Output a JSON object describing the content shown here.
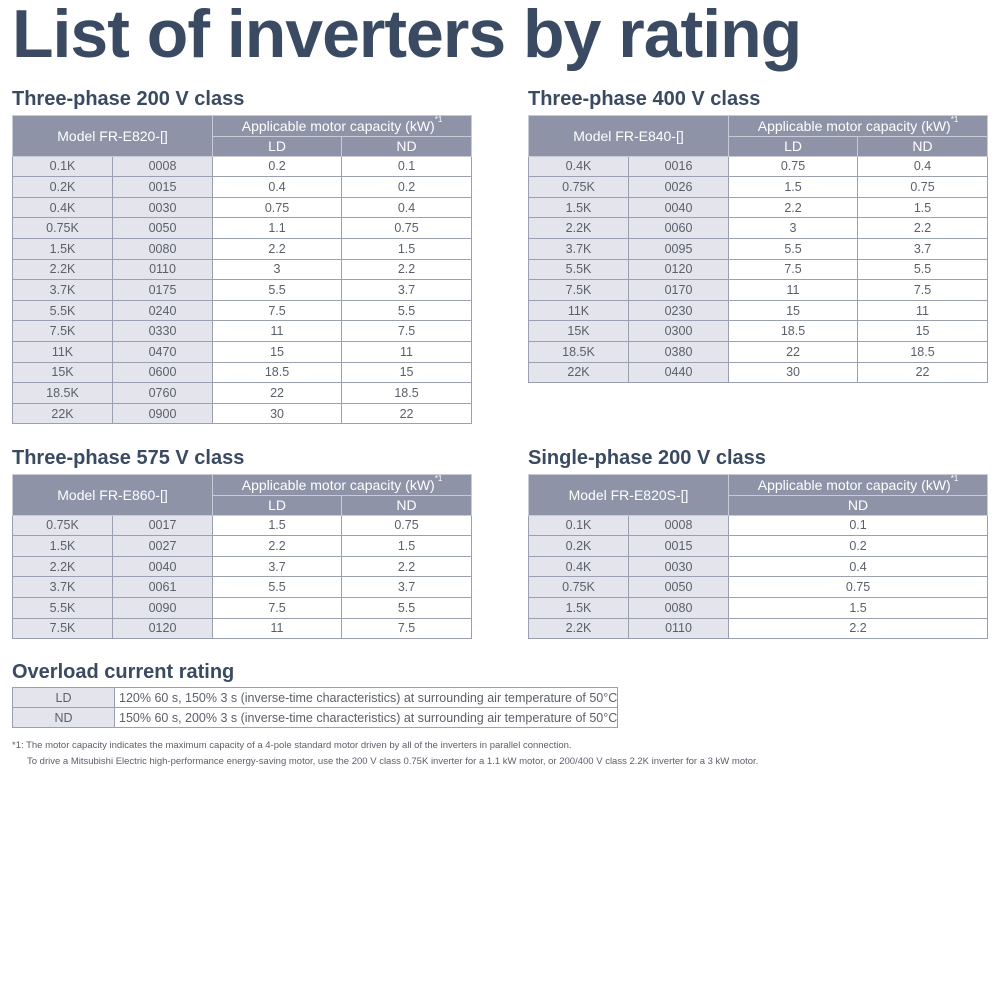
{
  "page_title": "List of inverters by rating",
  "capacity_header": "Applicable motor capacity (kW)",
  "footnote_mark": "*1",
  "tables": {
    "t200": {
      "title": "Three-phase 200 V class",
      "model_label": "Model FR-E820-[]",
      "cols": [
        "LD",
        "ND"
      ],
      "rows": [
        [
          "0.1K",
          "0008",
          "0.2",
          "0.1"
        ],
        [
          "0.2K",
          "0015",
          "0.4",
          "0.2"
        ],
        [
          "0.4K",
          "0030",
          "0.75",
          "0.4"
        ],
        [
          "0.75K",
          "0050",
          "1.1",
          "0.75"
        ],
        [
          "1.5K",
          "0080",
          "2.2",
          "1.5"
        ],
        [
          "2.2K",
          "0110",
          "3",
          "2.2"
        ],
        [
          "3.7K",
          "0175",
          "5.5",
          "3.7"
        ],
        [
          "5.5K",
          "0240",
          "7.5",
          "5.5"
        ],
        [
          "7.5K",
          "0330",
          "11",
          "7.5"
        ],
        [
          "11K",
          "0470",
          "15",
          "11"
        ],
        [
          "15K",
          "0600",
          "18.5",
          "15"
        ],
        [
          "18.5K",
          "0760",
          "22",
          "18.5"
        ],
        [
          "22K",
          "0900",
          "30",
          "22"
        ]
      ]
    },
    "t400": {
      "title": "Three-phase 400 V class",
      "model_label": "Model FR-E840-[]",
      "cols": [
        "LD",
        "ND"
      ],
      "rows": [
        [
          "0.4K",
          "0016",
          "0.75",
          "0.4"
        ],
        [
          "0.75K",
          "0026",
          "1.5",
          "0.75"
        ],
        [
          "1.5K",
          "0040",
          "2.2",
          "1.5"
        ],
        [
          "2.2K",
          "0060",
          "3",
          "2.2"
        ],
        [
          "3.7K",
          "0095",
          "5.5",
          "3.7"
        ],
        [
          "5.5K",
          "0120",
          "7.5",
          "5.5"
        ],
        [
          "7.5K",
          "0170",
          "11",
          "7.5"
        ],
        [
          "11K",
          "0230",
          "15",
          "11"
        ],
        [
          "15K",
          "0300",
          "18.5",
          "15"
        ],
        [
          "18.5K",
          "0380",
          "22",
          "18.5"
        ],
        [
          "22K",
          "0440",
          "30",
          "22"
        ]
      ]
    },
    "t575": {
      "title": "Three-phase 575 V class",
      "model_label": "Model FR-E860-[]",
      "cols": [
        "LD",
        "ND"
      ],
      "rows": [
        [
          "0.75K",
          "0017",
          "1.5",
          "0.75"
        ],
        [
          "1.5K",
          "0027",
          "2.2",
          "1.5"
        ],
        [
          "2.2K",
          "0040",
          "3.7",
          "2.2"
        ],
        [
          "3.7K",
          "0061",
          "5.5",
          "3.7"
        ],
        [
          "5.5K",
          "0090",
          "7.5",
          "5.5"
        ],
        [
          "7.5K",
          "0120",
          "11",
          "7.5"
        ]
      ]
    },
    "s200": {
      "title": "Single-phase 200 V class",
      "model_label": "Model FR-E820S-[]",
      "cols": [
        "ND"
      ],
      "rows": [
        [
          "0.1K",
          "0008",
          "0.1"
        ],
        [
          "0.2K",
          "0015",
          "0.2"
        ],
        [
          "0.4K",
          "0030",
          "0.4"
        ],
        [
          "0.75K",
          "0050",
          "0.75"
        ],
        [
          "1.5K",
          "0080",
          "1.5"
        ],
        [
          "2.2K",
          "0110",
          "2.2"
        ]
      ]
    }
  },
  "overload": {
    "title": "Overload current rating",
    "rows": [
      [
        "LD",
        "120% 60 s, 150% 3 s (inverse-time characteristics) at surrounding air temperature of 50°C"
      ],
      [
        "ND",
        "150% 60 s, 200% 3 s (inverse-time characteristics) at surrounding air temperature of 50°C"
      ]
    ]
  },
  "footnote": {
    "line1": "*1: The motor capacity indicates the maximum capacity of a 4-pole standard motor driven by all of the inverters in parallel connection.",
    "line2": "To drive a Mitsubishi Electric high-performance energy-saving motor, use the 200 V class 0.75K inverter for a 1.1 kW motor, or 200/400 V class 2.2K inverter for a 3 kW motor."
  }
}
